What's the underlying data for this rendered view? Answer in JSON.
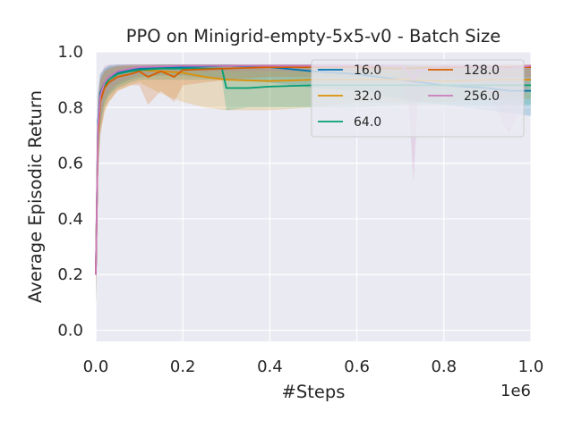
{
  "chart_data": {
    "type": "line",
    "title": "PPO on Minigrid-empty-5x5-v0 - Batch Size",
    "xlabel": "#Steps",
    "ylabel": "Average Episodic Return",
    "x_offset_label": "1e6",
    "xlim": [
      0,
      1.0
    ],
    "ylim": [
      -0.04,
      1.0
    ],
    "xticks": [
      0.0,
      0.2,
      0.4,
      0.6,
      0.8,
      1.0
    ],
    "xtick_labels": [
      "0.0",
      "0.2",
      "0.4",
      "0.6",
      "0.8",
      "1.0"
    ],
    "yticks": [
      0.0,
      0.2,
      0.4,
      0.6,
      0.8,
      1.0
    ],
    "ytick_labels": [
      "0.0",
      "0.2",
      "0.4",
      "0.6",
      "0.8",
      "1.0"
    ],
    "grid": true,
    "legend_position": "top-right",
    "legend_columns": 2,
    "series": [
      {
        "name": "16.0",
        "color": "#0173b2",
        "x": [
          0,
          0.005,
          0.01,
          0.02,
          0.03,
          0.05,
          0.08,
          0.1,
          0.15,
          0.2,
          0.3,
          0.4,
          0.5,
          0.6,
          0.7,
          0.8,
          0.9,
          0.95,
          1.0
        ],
        "y": [
          0.2,
          0.75,
          0.85,
          0.89,
          0.91,
          0.925,
          0.935,
          0.94,
          0.945,
          0.945,
          0.95,
          0.945,
          0.93,
          0.92,
          0.9,
          0.88,
          0.87,
          0.86,
          0.86
        ],
        "lower": [
          0.1,
          0.6,
          0.75,
          0.82,
          0.85,
          0.88,
          0.9,
          0.91,
          0.915,
          0.915,
          0.9,
          0.89,
          0.87,
          0.86,
          0.83,
          0.81,
          0.79,
          0.78,
          0.77
        ],
        "upper": [
          0.3,
          0.85,
          0.92,
          0.94,
          0.95,
          0.955,
          0.955,
          0.955,
          0.955,
          0.955,
          0.955,
          0.955,
          0.955,
          0.955,
          0.955,
          0.95,
          0.95,
          0.95,
          0.95
        ]
      },
      {
        "name": "32.0",
        "color": "#de8f05",
        "x": [
          0,
          0.005,
          0.01,
          0.02,
          0.03,
          0.05,
          0.08,
          0.1,
          0.15,
          0.2,
          0.25,
          0.3,
          0.4,
          0.5,
          0.6,
          0.7,
          0.8,
          0.9,
          1.0
        ],
        "y": [
          0.2,
          0.7,
          0.82,
          0.87,
          0.9,
          0.92,
          0.93,
          0.935,
          0.93,
          0.925,
          0.91,
          0.9,
          0.895,
          0.9,
          0.9,
          0.9,
          0.895,
          0.9,
          0.9
        ],
        "lower": [
          0.1,
          0.55,
          0.7,
          0.78,
          0.82,
          0.86,
          0.88,
          0.89,
          0.85,
          0.82,
          0.8,
          0.79,
          0.79,
          0.8,
          0.82,
          0.82,
          0.82,
          0.83,
          0.83
        ],
        "upper": [
          0.3,
          0.82,
          0.9,
          0.93,
          0.94,
          0.95,
          0.95,
          0.95,
          0.95,
          0.95,
          0.95,
          0.95,
          0.95,
          0.95,
          0.95,
          0.95,
          0.95,
          0.95,
          0.95
        ]
      },
      {
        "name": "64.0",
        "color": "#029e73",
        "x": [
          0,
          0.005,
          0.01,
          0.02,
          0.03,
          0.05,
          0.08,
          0.1,
          0.15,
          0.2,
          0.29,
          0.3,
          0.35,
          0.4,
          0.5,
          0.6,
          0.7,
          0.8,
          0.9,
          1.0
        ],
        "y": [
          0.2,
          0.72,
          0.83,
          0.88,
          0.9,
          0.92,
          0.93,
          0.935,
          0.94,
          0.94,
          0.94,
          0.87,
          0.87,
          0.875,
          0.88,
          0.88,
          0.88,
          0.88,
          0.88,
          0.88
        ],
        "lower": [
          0.1,
          0.55,
          0.72,
          0.8,
          0.84,
          0.87,
          0.89,
          0.9,
          0.9,
          0.9,
          0.9,
          0.79,
          0.8,
          0.8,
          0.8,
          0.8,
          0.81,
          0.81,
          0.81,
          0.81
        ],
        "upper": [
          0.3,
          0.84,
          0.91,
          0.94,
          0.95,
          0.95,
          0.95,
          0.95,
          0.955,
          0.955,
          0.955,
          0.95,
          0.95,
          0.95,
          0.95,
          0.95,
          0.95,
          0.95,
          0.95,
          0.95
        ]
      },
      {
        "name": "128.0",
        "color": "#d55e00",
        "x": [
          0,
          0.005,
          0.01,
          0.02,
          0.03,
          0.05,
          0.08,
          0.1,
          0.12,
          0.15,
          0.18,
          0.2,
          0.3,
          0.4,
          0.5,
          0.6,
          0.7,
          0.8,
          0.9,
          1.0
        ],
        "y": [
          0.2,
          0.7,
          0.82,
          0.87,
          0.89,
          0.91,
          0.92,
          0.93,
          0.91,
          0.93,
          0.91,
          0.935,
          0.94,
          0.945,
          0.945,
          0.945,
          0.94,
          0.945,
          0.945,
          0.945
        ],
        "lower": [
          0.1,
          0.55,
          0.7,
          0.79,
          0.82,
          0.86,
          0.88,
          0.88,
          0.81,
          0.86,
          0.82,
          0.88,
          0.9,
          0.91,
          0.91,
          0.91,
          0.9,
          0.91,
          0.91,
          0.91
        ],
        "upper": [
          0.3,
          0.82,
          0.9,
          0.93,
          0.94,
          0.95,
          0.955,
          0.955,
          0.955,
          0.955,
          0.955,
          0.955,
          0.955,
          0.955,
          0.955,
          0.955,
          0.955,
          0.955,
          0.955,
          0.955
        ]
      },
      {
        "name": "256.0",
        "color": "#cc78bc",
        "x": [
          0,
          0.005,
          0.01,
          0.02,
          0.03,
          0.05,
          0.08,
          0.1,
          0.2,
          0.3,
          0.4,
          0.5,
          0.6,
          0.7,
          0.72,
          0.73,
          0.74,
          0.8,
          0.9,
          0.95,
          1.0
        ],
        "y": [
          0.2,
          0.73,
          0.84,
          0.89,
          0.91,
          0.93,
          0.94,
          0.945,
          0.95,
          0.95,
          0.95,
          0.95,
          0.95,
          0.95,
          0.93,
          0.9,
          0.93,
          0.95,
          0.945,
          0.94,
          0.95
        ],
        "lower": [
          0.1,
          0.58,
          0.74,
          0.83,
          0.86,
          0.89,
          0.91,
          0.92,
          0.93,
          0.93,
          0.93,
          0.93,
          0.93,
          0.93,
          0.8,
          0.53,
          0.82,
          0.9,
          0.86,
          0.7,
          0.9
        ],
        "upper": [
          0.3,
          0.84,
          0.92,
          0.95,
          0.955,
          0.955,
          0.955,
          0.955,
          0.955,
          0.955,
          0.955,
          0.955,
          0.955,
          0.955,
          0.955,
          0.955,
          0.955,
          0.955,
          0.955,
          0.955,
          0.955
        ]
      }
    ]
  }
}
